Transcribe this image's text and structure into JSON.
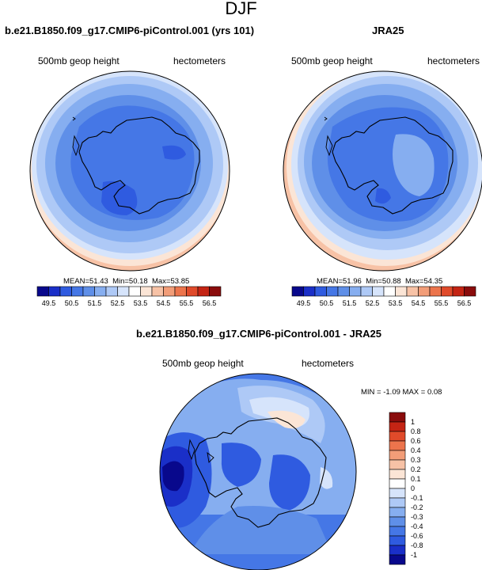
{
  "title": "DJF",
  "panels": [
    {
      "title": "b.e21.B1850.f09_g17.CMIP6-piControl.001 (yrs 101)",
      "left_label": "500mb geop height",
      "right_label": "hectometers",
      "mean": "51.43",
      "min": "50.18",
      "max": "53.85",
      "stats_labels": {
        "mean": "MEAN=",
        "min": "Min=",
        "max": "Max="
      }
    },
    {
      "title": "JRA25",
      "left_label": "500mb geop height",
      "right_label": "hectometers",
      "mean": "51.96",
      "min": "50.88",
      "max": "54.35",
      "stats_labels": {
        "mean": "MEAN=",
        "min": "Min=",
        "max": "Max="
      }
    },
    {
      "title": "b.e21.B1850.f09_g17.CMIP6-piControl.001 - JRA25",
      "left_label": "500mb geop height",
      "right_label": "hectometers",
      "stats_text": "MIN = -1.09 MAX = 0.08"
    }
  ],
  "colorbar_horizontal": {
    "labels": [
      "49.5",
      "50.5",
      "51.5",
      "52.5",
      "53.5",
      "54.5",
      "55.5",
      "56.5"
    ],
    "colors": [
      "#08088c",
      "#1a2fc8",
      "#2f5be0",
      "#4577e6",
      "#5f8fe8",
      "#86aef0",
      "#aec9f6",
      "#d6e4fb",
      "#ffffff",
      "#fbe5d6",
      "#f7c2a6",
      "#f29d78",
      "#ec744c",
      "#e04a2a",
      "#c42414",
      "#8a0c0c"
    ]
  },
  "colorbar_vertical": {
    "labels": [
      "1",
      "0.8",
      "0.6",
      "0.4",
      "0.3",
      "0.2",
      "0.1",
      "0",
      "-0.1",
      "-0.2",
      "-0.3",
      "-0.4",
      "-0.6",
      "-0.8",
      "-1"
    ],
    "colors": [
      "#8a0c0c",
      "#c42414",
      "#e04a2a",
      "#ec744c",
      "#f29d78",
      "#f7c2a6",
      "#fbe5d6",
      "#ffffff",
      "#d6e4fb",
      "#aec9f6",
      "#86aef0",
      "#5f8fe8",
      "#4577e6",
      "#2f5be0",
      "#1a2fc8",
      "#08088c"
    ]
  }
}
